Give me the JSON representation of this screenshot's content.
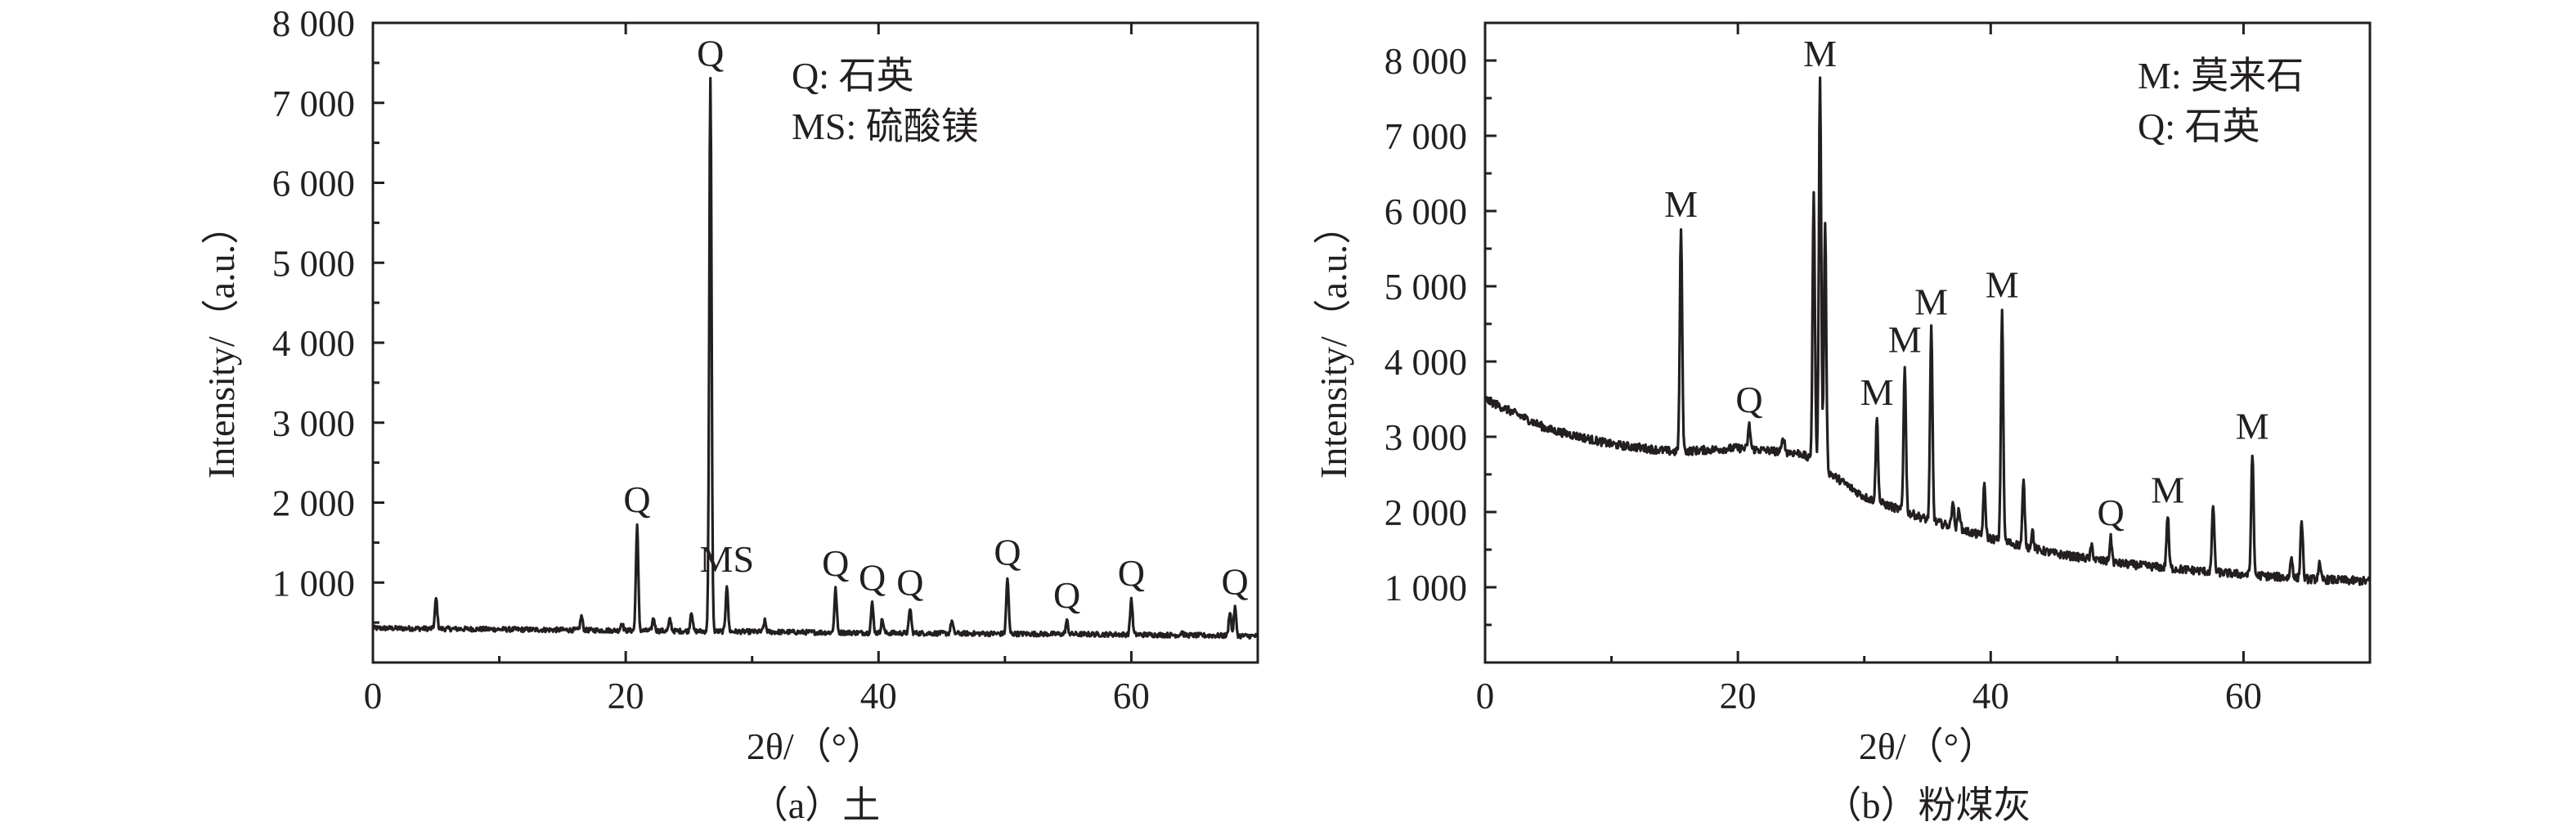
{
  "chart_data": [
    {
      "type": "line",
      "caption": "（a）土",
      "xlabel": "2θ/（°）",
      "ylabel": "Intensity/（a.u.）",
      "xlim": [
        0,
        70
      ],
      "ylim": [
        0,
        8000
      ],
      "x_ticks": [
        0,
        20,
        40,
        60
      ],
      "x_tick_labels": [
        "0",
        "20",
        "40",
        "60"
      ],
      "y_ticks": [
        1000,
        2000,
        3000,
        4000,
        5000,
        6000,
        7000,
        8000
      ],
      "y_tick_labels": [
        "1 000",
        "2 000",
        "3 000",
        "4 000",
        "5 000",
        "6 000",
        "7 000",
        "8 000"
      ],
      "legend": [
        "Q: 石英",
        "MS: 硫酸镁"
      ],
      "legend_position": "top-right",
      "baseline": [
        [
          0,
          430
        ],
        [
          20,
          400
        ],
        [
          40,
          370
        ],
        [
          60,
          350
        ],
        [
          70,
          330
        ]
      ],
      "peaks": [
        {
          "x": 5.0,
          "y": 800
        },
        {
          "x": 16.5,
          "y": 580
        },
        {
          "x": 19.7,
          "y": 500
        },
        {
          "x": 20.9,
          "y": 1720,
          "label": "Q"
        },
        {
          "x": 22.2,
          "y": 560
        },
        {
          "x": 23.5,
          "y": 540
        },
        {
          "x": 25.2,
          "y": 640
        },
        {
          "x": 26.7,
          "y": 7300,
          "label": "Q"
        },
        {
          "x": 28.0,
          "y": 970,
          "label": "MS"
        },
        {
          "x": 31.0,
          "y": 520
        },
        {
          "x": 36.6,
          "y": 920,
          "label": "Q"
        },
        {
          "x": 39.5,
          "y": 740,
          "label": "Q"
        },
        {
          "x": 40.3,
          "y": 540
        },
        {
          "x": 42.5,
          "y": 680,
          "label": "Q"
        },
        {
          "x": 45.8,
          "y": 520
        },
        {
          "x": 50.2,
          "y": 1060,
          "label": "Q"
        },
        {
          "x": 54.9,
          "y": 520,
          "label": "Q"
        },
        {
          "x": 60.0,
          "y": 800,
          "label": "Q"
        },
        {
          "x": 64.0,
          "y": 380
        },
        {
          "x": 67.8,
          "y": 640
        },
        {
          "x": 68.2,
          "y": 690,
          "label": "Q"
        }
      ]
    },
    {
      "type": "line",
      "caption": "（b）粉煤灰",
      "xlabel": "2θ/（°）",
      "ylabel": "Intensity/（a.u.）",
      "xlim": [
        0,
        70
      ],
      "ylim": [
        0,
        8500
      ],
      "x_ticks": [
        0,
        20,
        40,
        60
      ],
      "x_tick_labels": [
        "0",
        "20",
        "40",
        "60"
      ],
      "y_ticks": [
        1000,
        2000,
        3000,
        4000,
        5000,
        6000,
        7000,
        8000
      ],
      "y_tick_labels": [
        "1 000",
        "2 000",
        "3 000",
        "4 000",
        "5 000",
        "6 000",
        "7 000",
        "8 000"
      ],
      "legend": [
        "M: 莫来石",
        "Q: 石英"
      ],
      "legend_position": "top-right",
      "baseline": [
        [
          0,
          3500
        ],
        [
          5,
          3100
        ],
        [
          10,
          2900
        ],
        [
          15,
          2800
        ],
        [
          20,
          2850
        ],
        [
          25,
          2780
        ],
        [
          30,
          2200
        ],
        [
          35,
          1900
        ],
        [
          40,
          1650
        ],
        [
          45,
          1450
        ],
        [
          50,
          1320
        ],
        [
          55,
          1240
        ],
        [
          60,
          1170
        ],
        [
          65,
          1110
        ],
        [
          70,
          1080
        ]
      ],
      "peaks": [
        {
          "x": 15.5,
          "y": 5750,
          "label": "M"
        },
        {
          "x": 20.9,
          "y": 3150,
          "label": "Q"
        },
        {
          "x": 23.6,
          "y": 3000
        },
        {
          "x": 26.0,
          "y": 6200
        },
        {
          "x": 26.5,
          "y": 7750,
          "label": "M"
        },
        {
          "x": 26.9,
          "y": 5800
        },
        {
          "x": 31.0,
          "y": 3250,
          "label": "M"
        },
        {
          "x": 33.2,
          "y": 3950,
          "label": "M"
        },
        {
          "x": 35.3,
          "y": 4450,
          "label": "M"
        },
        {
          "x": 37.0,
          "y": 2150
        },
        {
          "x": 37.5,
          "y": 2050
        },
        {
          "x": 39.5,
          "y": 2350
        },
        {
          "x": 40.9,
          "y": 4680,
          "label": "M"
        },
        {
          "x": 42.6,
          "y": 2400
        },
        {
          "x": 43.3,
          "y": 1750
        },
        {
          "x": 48.0,
          "y": 1550
        },
        {
          "x": 49.5,
          "y": 1650,
          "label": "Q"
        },
        {
          "x": 54.0,
          "y": 1950,
          "label": "M"
        },
        {
          "x": 57.6,
          "y": 2100
        },
        {
          "x": 60.7,
          "y": 2800,
          "label": "M"
        },
        {
          "x": 63.8,
          "y": 1400
        },
        {
          "x": 64.6,
          "y": 1900
        },
        {
          "x": 66.0,
          "y": 1300
        }
      ]
    }
  ]
}
